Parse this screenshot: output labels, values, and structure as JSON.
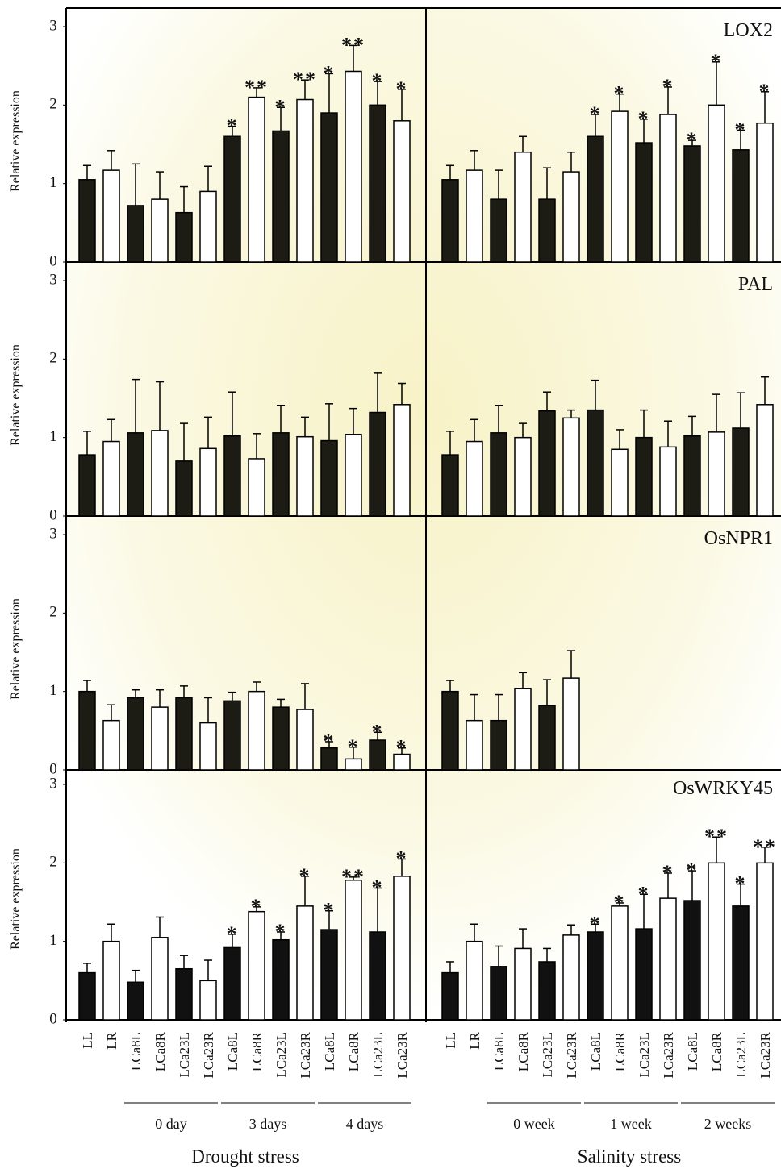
{
  "chart_data": [
    {
      "type": "bar",
      "ylabel": "Relative expression",
      "color": "#1c1c14",
      "ylim": [
        0,
        3
      ],
      "yticks": [
        0,
        1,
        2,
        3
      ],
      "values": [
        1.05,
        1.17,
        0.72,
        0.8,
        0.63,
        0.9,
        1.6,
        2.1,
        1.67,
        2.07,
        1.9,
        2.43,
        2.0,
        1.8
      ],
      "errors": [
        0.18,
        0.25,
        0.53,
        0.35,
        0.33,
        0.32,
        0.13,
        0.12,
        0.3,
        0.25,
        0.5,
        0.33,
        0.3,
        0.4
      ],
      "significance": [
        null,
        null,
        null,
        null,
        null,
        null,
        "*",
        "**",
        "*",
        "**",
        "*",
        "**",
        "*",
        "*"
      ]
    },
    {
      "type": "bar",
      "title": "LOX2",
      "color": "#1c1c14",
      "ylim": [
        0,
        3
      ],
      "values": [
        1.05,
        1.17,
        0.8,
        1.4,
        0.8,
        1.15,
        1.6,
        1.92,
        1.52,
        1.88,
        1.48,
        2.0,
        1.43,
        1.77
      ],
      "errors": [
        0.18,
        0.25,
        0.37,
        0.2,
        0.4,
        0.25,
        0.28,
        0.22,
        0.3,
        0.35,
        0.07,
        0.55,
        0.25,
        0.4
      ],
      "significance": [
        null,
        null,
        null,
        null,
        null,
        null,
        "*",
        "*",
        "*",
        "*",
        "*",
        "*",
        "*",
        "*"
      ]
    },
    {
      "type": "bar",
      "ylabel": "Relative expression",
      "color": "#1c1c14",
      "ylim": [
        0,
        3
      ],
      "yticks": [
        0,
        1,
        2,
        3
      ],
      "values": [
        0.78,
        0.95,
        1.06,
        1.09,
        0.7,
        0.86,
        1.02,
        0.73,
        1.06,
        1.01,
        0.96,
        1.04,
        1.32,
        1.42
      ],
      "errors": [
        0.3,
        0.28,
        0.68,
        0.62,
        0.48,
        0.4,
        0.56,
        0.32,
        0.35,
        0.25,
        0.47,
        0.33,
        0.5,
        0.27
      ],
      "significance": [
        null,
        null,
        null,
        null,
        null,
        null,
        null,
        null,
        null,
        null,
        null,
        null,
        null,
        null
      ]
    },
    {
      "type": "bar",
      "title": "PAL",
      "color": "#1c1c14",
      "ylim": [
        0,
        3
      ],
      "values": [
        0.78,
        0.95,
        1.06,
        1.0,
        1.34,
        1.25,
        1.35,
        0.85,
        1.0,
        0.88,
        1.02,
        1.07,
        1.12,
        1.42
      ],
      "errors": [
        0.3,
        0.28,
        0.35,
        0.18,
        0.24,
        0.1,
        0.38,
        0.25,
        0.35,
        0.33,
        0.25,
        0.48,
        0.45,
        0.35
      ],
      "significance": [
        null,
        null,
        null,
        null,
        null,
        null,
        null,
        null,
        null,
        null,
        null,
        null,
        null,
        null
      ]
    },
    {
      "type": "bar",
      "ylabel": "Relative expression",
      "color": "#1c1c14",
      "ylim": [
        0,
        3
      ],
      "yticks": [
        0,
        1,
        2,
        3
      ],
      "values": [
        1.0,
        0.63,
        0.92,
        0.8,
        0.92,
        0.6,
        0.88,
        1.0,
        0.8,
        0.77,
        0.28,
        0.14,
        0.38,
        0.2
      ],
      "errors": [
        0.14,
        0.2,
        0.1,
        0.22,
        0.15,
        0.32,
        0.11,
        0.12,
        0.1,
        0.33,
        0.08,
        0.15,
        0.1,
        0.08
      ],
      "significance": [
        null,
        null,
        null,
        null,
        null,
        null,
        null,
        null,
        null,
        null,
        "*",
        "*",
        "*",
        "*"
      ]
    },
    {
      "type": "bar",
      "title": "OsNPR1",
      "color": "#1c1c14",
      "ylim": [
        0,
        3
      ],
      "values": [
        1.0,
        0.63,
        0.63,
        1.04,
        0.82,
        1.17
      ],
      "errors": [
        0.14,
        0.33,
        0.33,
        0.2,
        0.33,
        0.35
      ],
      "significance": [
        null,
        null,
        null,
        null,
        null,
        null
      ]
    },
    {
      "type": "bar",
      "ylabel": "Relative expression",
      "color": "#111111",
      "ylim": [
        0,
        3
      ],
      "yticks": [
        0,
        1,
        2,
        3
      ],
      "values": [
        0.6,
        1.0,
        0.48,
        1.05,
        0.65,
        0.5,
        0.92,
        1.38,
        1.02,
        1.45,
        1.15,
        1.78,
        1.12,
        1.83
      ],
      "errors": [
        0.12,
        0.22,
        0.15,
        0.26,
        0.17,
        0.26,
        0.17,
        0.06,
        0.1,
        0.38,
        0.24,
        0.04,
        0.56,
        0.22
      ],
      "significance": [
        null,
        null,
        null,
        null,
        null,
        null,
        "*",
        "*",
        "*",
        "*",
        "*",
        "**",
        "*",
        "*"
      ],
      "categories": [
        "LL",
        "LR",
        "LCa8L",
        "LCa8R",
        "LCa23L",
        "LCa23R",
        "LCa8L",
        "LCa8R",
        "LCa23L",
        "LCa23R",
        "LCa8L",
        "LCa8R",
        "LCa23L",
        "LCa23R"
      ],
      "groups": [
        "0 day",
        "3 days",
        "4 days"
      ],
      "xlabel": "Drought stress"
    },
    {
      "type": "bar",
      "title": "OsWRKY45",
      "color": "#111111",
      "ylim": [
        0,
        3
      ],
      "values": [
        0.6,
        1.0,
        0.68,
        0.91,
        0.74,
        1.08,
        1.12,
        1.45,
        1.16,
        1.55,
        1.52,
        2.0,
        1.45,
        2.0
      ],
      "errors": [
        0.14,
        0.22,
        0.26,
        0.25,
        0.17,
        0.13,
        0.1,
        0.04,
        0.44,
        0.32,
        0.38,
        0.33,
        0.28,
        0.2
      ],
      "significance": [
        null,
        null,
        null,
        null,
        null,
        null,
        "*",
        "*",
        "*",
        "*",
        "*",
        "**",
        "*",
        "**"
      ],
      "categories": [
        "LL",
        "LR",
        "LCa8L",
        "LCa8R",
        "LCa23L",
        "LCa23R",
        "LCa8L",
        "LCa8R",
        "LCa23L",
        "LCa23R",
        "LCa8L",
        "LCa8R",
        "LCa23L",
        "LCa23R"
      ],
      "groups": [
        "0 week",
        "1 week",
        "2 weeks"
      ],
      "xlabel": "Salinity stress"
    }
  ]
}
